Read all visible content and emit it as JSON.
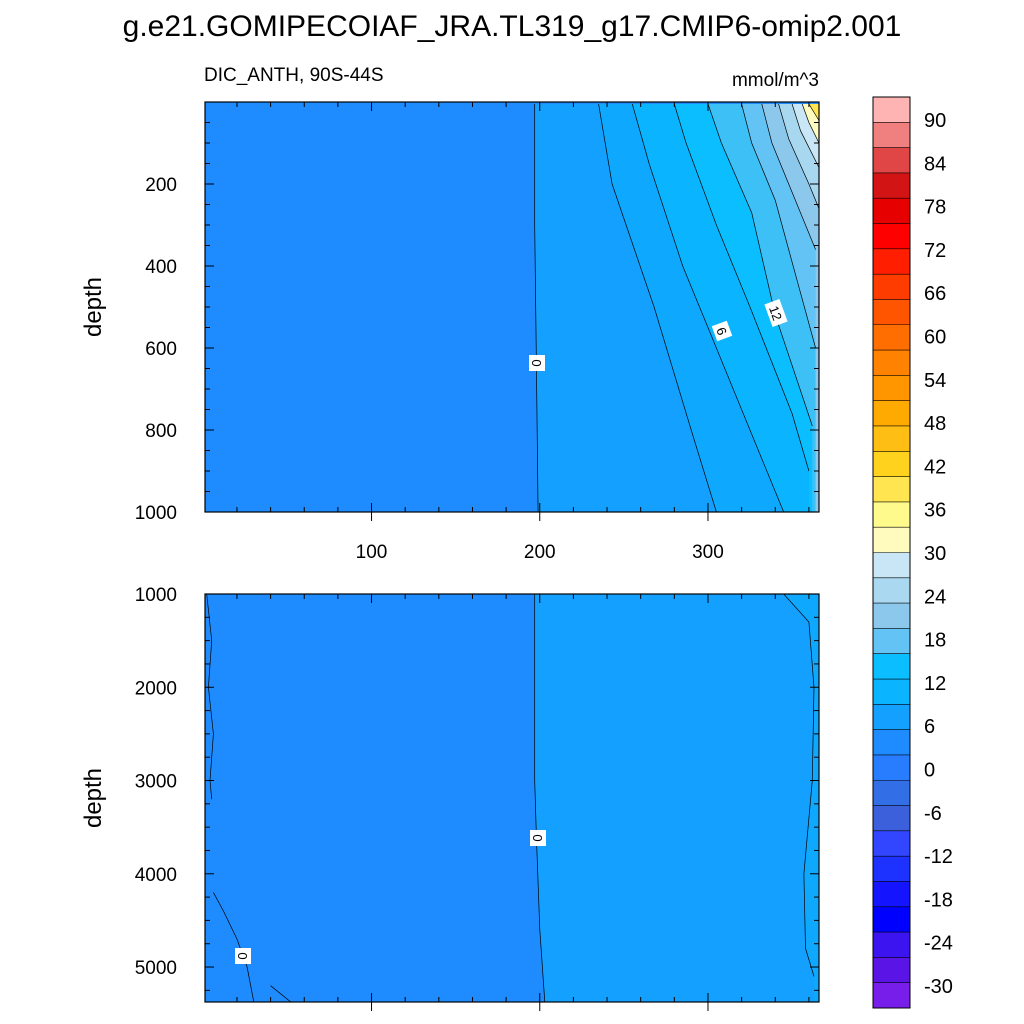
{
  "figure": {
    "title": "g.e21.GOMIPECOIAF_JRA.TL319_g17.CMIP6-omip2.001"
  },
  "chart_data": [
    {
      "type": "heatmap",
      "subtitle_left": "DIC_ANTH, 90S-44S",
      "subtitle_right": "mmol/m^3",
      "ylabel": "depth",
      "xlabel": "",
      "xlim": [
        1,
        366
      ],
      "ylim": [
        1000,
        5
      ],
      "xticks": [
        "100",
        "200",
        "300"
      ],
      "yticks": [
        "200",
        "400",
        "600",
        "800",
        "1000"
      ],
      "contour_labels": [
        "0",
        "6",
        "12"
      ],
      "fields": [
        {
          "region": "west of day ~197 (most of panel)",
          "value_range": [
            -3,
            0
          ],
          "color": "#1e8cff"
        },
        {
          "region": "east of 0 contour, deep",
          "value_range": [
            0,
            3
          ],
          "color": "#14a0ff"
        },
        {
          "region": "sloping band toward the surface east",
          "value_range": [
            3,
            12
          ],
          "color": "#0ab4ff"
        },
        {
          "region": "upper-right corner near surface",
          "value_range": [
            12,
            30
          ],
          "color": "#a0d2f0"
        },
        {
          "region": "extreme upper-right corner",
          "value_range": [
            30,
            48
          ],
          "color": "#ffd21e"
        }
      ],
      "contours": [
        {
          "level": 0,
          "points": [
            [
              197,
              5
            ],
            [
              197,
              300
            ],
            [
              198,
              640
            ],
            [
              199,
              1000
            ]
          ]
        },
        {
          "level": 3,
          "points": [
            [
              235,
              5
            ],
            [
              243,
              200
            ],
            [
              268,
              500
            ],
            [
              290,
              800
            ],
            [
              305,
              1000
            ]
          ]
        },
        {
          "level": 6,
          "points": [
            [
              255,
              5
            ],
            [
              265,
              150
            ],
            [
              285,
              400
            ],
            [
              303,
              580
            ],
            [
              330,
              850
            ],
            [
              345,
              1000
            ]
          ]
        },
        {
          "level": 9,
          "points": [
            [
              280,
              5
            ],
            [
              287,
              100
            ],
            [
              305,
              300
            ],
            [
              325,
              500
            ],
            [
              350,
              760
            ],
            [
              360,
              900
            ]
          ]
        },
        {
          "level": 12,
          "points": [
            [
              300,
              5
            ],
            [
              308,
              100
            ],
            [
              326,
              270
            ],
            [
              340,
              520
            ],
            [
              362,
              790
            ]
          ]
        },
        {
          "level": 15,
          "points": [
            [
              320,
              5
            ],
            [
              326,
              100
            ],
            [
              340,
              240
            ],
            [
              352,
              420
            ],
            [
              364,
              600
            ]
          ]
        },
        {
          "level": 18,
          "points": [
            [
              332,
              5
            ],
            [
              338,
              100
            ],
            [
              350,
              220
            ],
            [
              364,
              360
            ]
          ]
        },
        {
          "level": 24,
          "points": [
            [
              342,
              5
            ],
            [
              348,
              90
            ],
            [
              360,
              200
            ],
            [
              366,
              260
            ]
          ]
        },
        {
          "level": 30,
          "points": [
            [
              350,
              5
            ],
            [
              355,
              70
            ],
            [
              366,
              160
            ]
          ]
        },
        {
          "level": 36,
          "points": [
            [
              356,
              5
            ],
            [
              360,
              50
            ],
            [
              366,
              100
            ]
          ]
        },
        {
          "level": 42,
          "points": [
            [
              360,
              5
            ],
            [
              366,
              45
            ]
          ]
        }
      ]
    },
    {
      "type": "heatmap",
      "subtitle_left": "",
      "subtitle_right": "",
      "ylabel": "depth",
      "xlabel": "",
      "xlim": [
        1,
        366
      ],
      "ylim": [
        5375,
        1000
      ],
      "xticks": [],
      "yticks": [
        "1000",
        "2000",
        "3000",
        "4000",
        "5000"
      ],
      "contour_labels": [
        "0",
        "0"
      ],
      "fields": [
        {
          "region": "west of day ~197",
          "value_range": [
            -3,
            0
          ],
          "color": "#1e8cff"
        },
        {
          "region": "east of 0 contour",
          "value_range": [
            0,
            3
          ],
          "color": "#14a0ff"
        }
      ],
      "contours": [
        {
          "level": 0,
          "points": [
            [
              197,
              1000
            ],
            [
              197,
              3000
            ],
            [
              198,
              3600
            ],
            [
              200,
              4600
            ],
            [
              203,
              5375
            ]
          ]
        },
        {
          "level": 3,
          "points": [
            [
              345,
              1000
            ],
            [
              360,
              1300
            ],
            [
              363,
              2000
            ],
            [
              362,
              3000
            ],
            [
              357,
              4000
            ],
            [
              358,
              4800
            ],
            [
              363,
              5100
            ]
          ]
        },
        {
          "level": 0,
          "points": [
            [
              2,
              1000
            ],
            [
              5,
              1500
            ],
            [
              3,
              2000
            ],
            [
              6,
              2500
            ],
            [
              4,
              3000
            ],
            [
              5,
              3200
            ]
          ]
        },
        {
          "level": 0,
          "points": [
            [
              6,
              4200
            ],
            [
              12,
              4400
            ],
            [
              20,
              4700
            ],
            [
              26,
              5000
            ],
            [
              30,
              5375
            ]
          ]
        },
        {
          "level": 0,
          "points": [
            [
              40,
              5200
            ],
            [
              52,
              5375
            ]
          ]
        }
      ]
    }
  ],
  "colorbar": {
    "tick_labels": [
      "90",
      "84",
      "78",
      "72",
      "66",
      "60",
      "54",
      "48",
      "42",
      "36",
      "30",
      "24",
      "18",
      "12",
      "6",
      "0",
      "-6",
      "-12",
      "-18",
      "-24",
      "-30"
    ],
    "colors": [
      "#ffb4b4",
      "#f08080",
      "#e04646",
      "#d21414",
      "#e60000",
      "#ff0000",
      "#ff1e00",
      "#ff3c00",
      "#ff5500",
      "#ff6e00",
      "#ff8200",
      "#ff9600",
      "#ffaa00",
      "#ffbe14",
      "#ffd21e",
      "#ffe650",
      "#fffa8c",
      "#fffbbe",
      "#c8e6f5",
      "#aad8f0",
      "#8cc8eb",
      "#64c3f5",
      "#0abeff",
      "#0ab4ff",
      "#14a0ff",
      "#1e8cff",
      "#287dff",
      "#326ee6",
      "#3c5fdc",
      "#3246ff",
      "#1e32ff",
      "#1414ff",
      "#0000ff",
      "#3c14f0",
      "#5a14e6",
      "#781eeb"
    ]
  }
}
